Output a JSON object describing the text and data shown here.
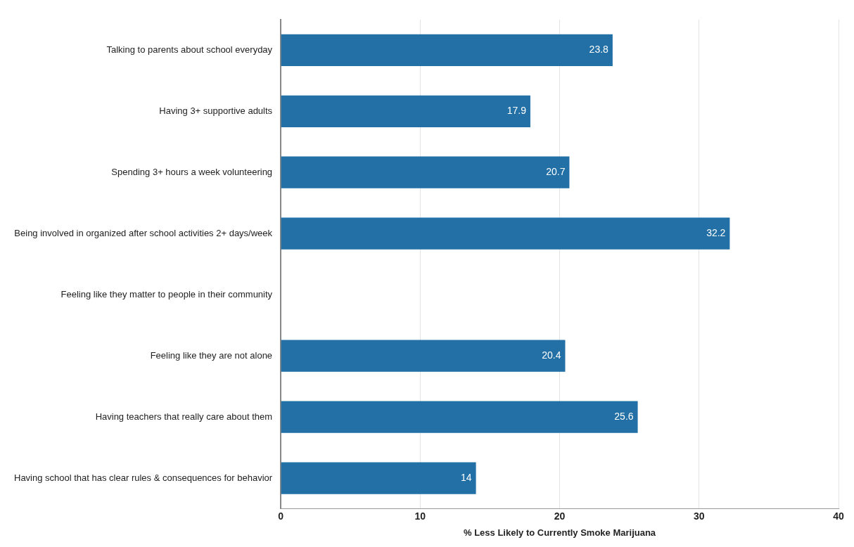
{
  "chart_data": {
    "type": "bar",
    "orientation": "horizontal",
    "xlabel": "% Less Likely to Currently Smoke Marijuana",
    "categories": [
      "Talking to parents about school everyday",
      "Having 3+ supportive adults",
      "Spending 3+ hours a week volunteering",
      "Being involved in organized after school activities 2+ days/week",
      "Feeling like they matter to people in their community",
      "Feeling like they are not alone",
      "Having teachers that really care about them",
      "Having school that has clear rules & consequences for behavior"
    ],
    "values": [
      23.8,
      17.9,
      20.7,
      32.2,
      null,
      20.4,
      25.6,
      14
    ],
    "color": "#2270a6",
    "xlim": [
      0,
      40
    ],
    "xticks": [
      0,
      10,
      20,
      30,
      40
    ],
    "grid": "x",
    "data_labels": true
  }
}
